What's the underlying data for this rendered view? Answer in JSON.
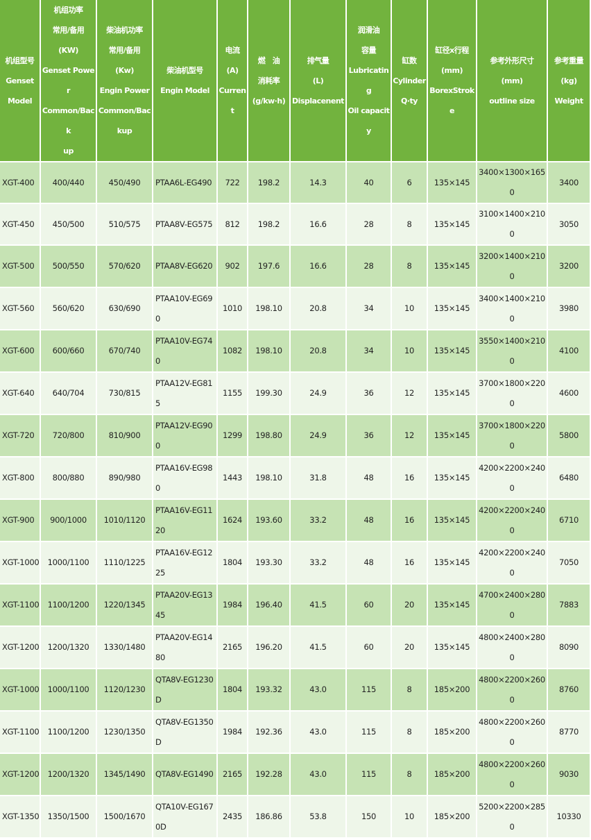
{
  "colors": {
    "header": "#72b33e",
    "row_dark": "#c6e3b4",
    "row_light": "#eef6e9"
  },
  "headers": [
    [
      "机组型号",
      "Genset",
      "Model"
    ],
    [
      "机组功率",
      "常用/备用",
      "(KW)",
      "Genset Power",
      "Common/Back",
      "up"
    ],
    [
      "柴油机功率",
      "常用/备用",
      "(Kw)",
      "Engin Power",
      "Common/Bac",
      "kup"
    ],
    [
      "柴油机型号",
      "Engin Model"
    ],
    [
      "电流",
      "(A)",
      "Current"
    ],
    [
      "燃　油",
      "消耗率",
      "(g/kw·h)"
    ],
    [
      "排气量",
      "(L)",
      "Displacenent"
    ],
    [
      "润滑油",
      "容量",
      "Lubricating",
      "Oil capacity"
    ],
    [
      "缸数",
      "Cylinder",
      "Q·ty"
    ],
    [
      "缸径x行程",
      "(mm)",
      "BorexStroke"
    ],
    [
      "参考外形尺寸",
      "(mm)",
      "outline size"
    ],
    [
      "参考重量",
      "(kg)",
      "Weight"
    ]
  ],
  "rows": [
    [
      "XGT-400",
      "400/440",
      "450/490",
      "PTAA6L-EG490",
      "722",
      "198.2",
      "14.3",
      "40",
      "6",
      "135×145",
      "3400×1300×1650",
      "3400"
    ],
    [
      "XGT-450",
      "450/500",
      "510/575",
      "PTAA8V-EG575",
      "812",
      "198.2",
      "16.6",
      "28",
      "8",
      "135×145",
      "3100×1400×2100",
      "3050"
    ],
    [
      "XGT-500",
      "500/550",
      "570/620",
      "PTAA8V-EG620",
      "902",
      "197.6",
      "16.6",
      "28",
      "8",
      "135×145",
      "3200×1400×2100",
      "3200"
    ],
    [
      "XGT-560",
      "560/620",
      "630/690",
      "PTAA10V-EG690",
      "1010",
      "198.10",
      "20.8",
      "34",
      "10",
      "135×145",
      "3400×1400×2100",
      "3980"
    ],
    [
      "XGT-600",
      "600/660",
      "670/740",
      "PTAA10V-EG740",
      "1082",
      "198.10",
      "20.8",
      "34",
      "10",
      "135×145",
      "3550×1400×2100",
      "4100"
    ],
    [
      "XGT-640",
      "640/704",
      "730/815",
      "PTAA12V-EG815",
      "1155",
      "199.30",
      "24.9",
      "36",
      "12",
      "135×145",
      "3700×1800×2200",
      "4600"
    ],
    [
      "XGT-720",
      "720/800",
      "810/900",
      "PTAA12V-EG900",
      "1299",
      "198.80",
      "24.9",
      "36",
      "12",
      "135×145",
      "3700×1800×2200",
      "5800"
    ],
    [
      "XGT-800",
      "800/880",
      "890/980",
      "PTAA16V-EG980",
      "1443",
      "198.10",
      "31.8",
      "48",
      "16",
      "135×145",
      "4200×2200×2400",
      "6480"
    ],
    [
      "XGT-900",
      "900/1000",
      "1010/1120",
      "PTAA16V-EG1120",
      "1624",
      "193.60",
      "33.2",
      "48",
      "16",
      "135×145",
      "4200×2200×2400",
      "6710"
    ],
    [
      "XGT-1000",
      "1000/1100",
      "1110/1225",
      "PTAA16V-EG1225",
      "1804",
      "193.30",
      "33.2",
      "48",
      "16",
      "135×145",
      "4200×2200×2400",
      "7050"
    ],
    [
      "XGT-1100",
      "1100/1200",
      "1220/1345",
      "PTAA20V-EG1345",
      "1984",
      "196.40",
      "41.5",
      "60",
      "20",
      "135×145",
      "4700×2400×2800",
      "7883"
    ],
    [
      "XGT-1200",
      "1200/1320",
      "1330/1480",
      "PTAA20V-EG1480",
      "2165",
      "196.20",
      "41.5",
      "60",
      "20",
      "135×145",
      "4800×2400×2800",
      "8090"
    ],
    [
      "XGT-1000",
      "1000/1100",
      "1120/1230",
      "QTA8V-EG1230D",
      "1804",
      "193.32",
      "43.0",
      "115",
      "8",
      "185×200",
      "4800×2200×2600",
      "8760"
    ],
    [
      "XGT-1100",
      "1100/1200",
      "1230/1350",
      "QTA8V-EG1350D",
      "1984",
      "192.36",
      "43.0",
      "115",
      "8",
      "185×200",
      "4800×2200×2600",
      "8770"
    ],
    [
      "XGT-1200",
      "1200/1320",
      "1345/1490",
      "QTA8V-EG1490",
      "2165",
      "192.28",
      "43.0",
      "115",
      "8",
      "185×200",
      "4800×2200×2600",
      "9030"
    ],
    [
      "XGT-1350",
      "1350/1500",
      "1500/1670",
      "QTA10V-EG1670D",
      "2435",
      "186.86",
      "53.8",
      "150",
      "10",
      "185×200",
      "5200×2200×2850",
      "10330"
    ]
  ]
}
